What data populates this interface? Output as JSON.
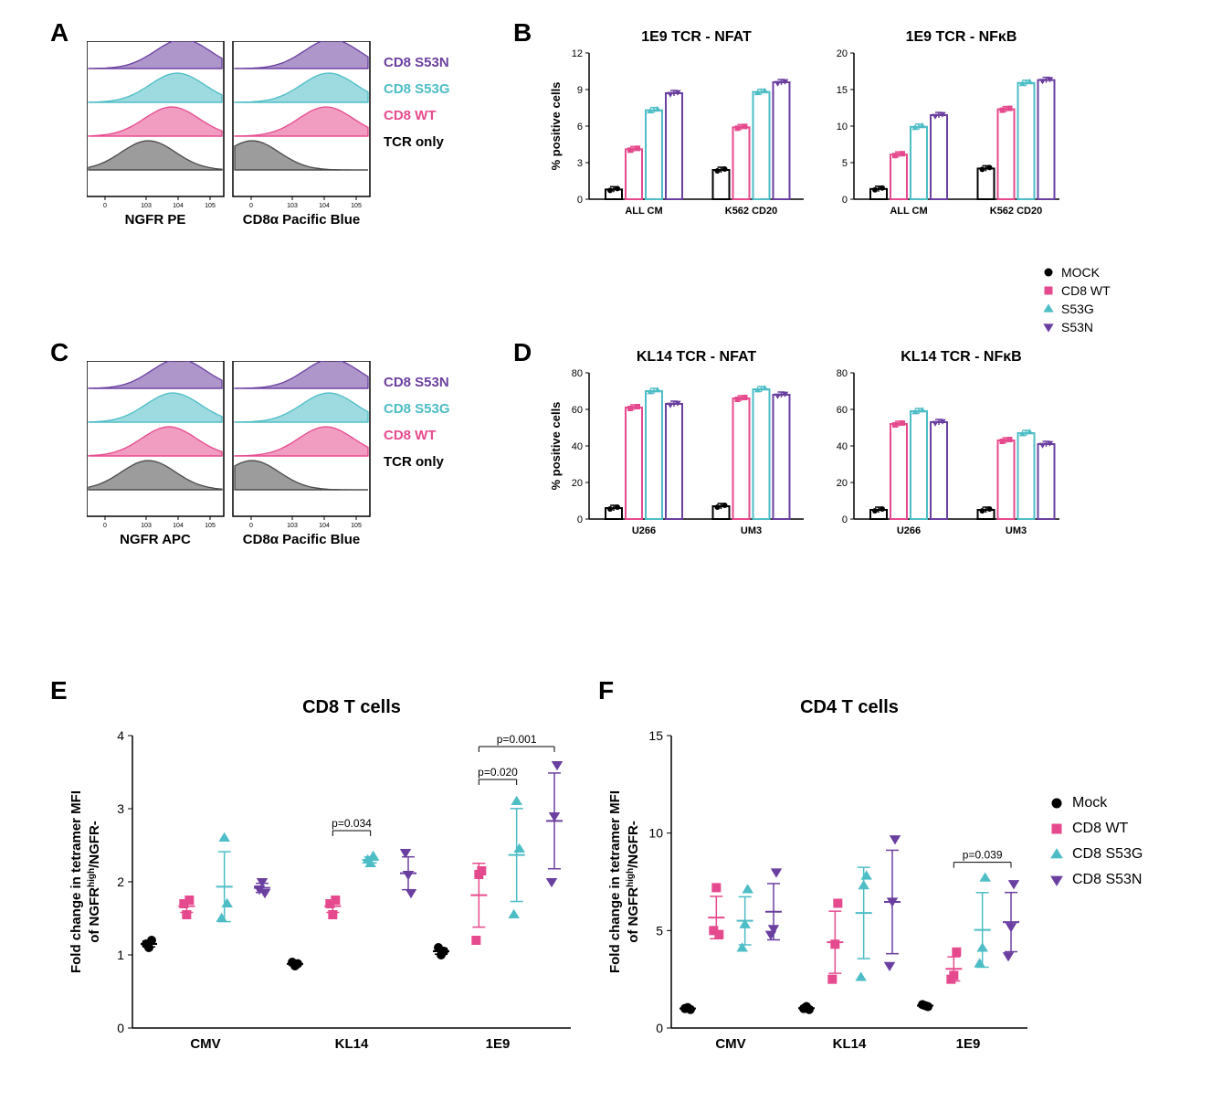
{
  "panels": {
    "A": "A",
    "B": "B",
    "C": "C",
    "D": "D",
    "E": "E",
    "F": "F"
  },
  "colors": {
    "s53n": "#6b3fa0",
    "s53g": "#4dbdc6",
    "wt": "#e64a8e",
    "tcr_only": "#707070",
    "mock": "#000000",
    "axis": "#000000",
    "bg": "#ffffff"
  },
  "histogram_legend": {
    "items": [
      "CD8 S53N",
      "CD8 S53G",
      "CD8 WT",
      "TCR only"
    ],
    "colors": [
      "#6b3fa0",
      "#4dbdc6",
      "#e64a8e",
      "#4a4a4a"
    ]
  },
  "panelA": {
    "left_label": "NGFR PE",
    "right_label": "CD8α Pacific Blue",
    "xticks": [
      "0",
      "10^3",
      "10^4",
      "10^5"
    ]
  },
  "panelC": {
    "left_label": "NGFR APC",
    "right_label": "CD8α Pacific Blue",
    "xticks": [
      "0",
      "10^3",
      "10^4",
      "10^5"
    ]
  },
  "panelB": {
    "ylabel": "% positive cells",
    "nfat": {
      "title": "1E9 TCR - NFAT",
      "ylim": [
        0,
        12
      ],
      "yticks": [
        0,
        3,
        6,
        9,
        12
      ],
      "groups": [
        "ALL CM",
        "K562 CD20"
      ],
      "data": {
        "ALL CM": {
          "MOCK": 0.8,
          "CD8 WT": 4.1,
          "S53G": 7.3,
          "S53N": 8.7
        },
        "K562 CD20": {
          "MOCK": 2.4,
          "CD8 WT": 5.9,
          "S53G": 8.8,
          "S53N": 9.6
        }
      }
    },
    "nfkb": {
      "title": "1E9 TCR - NFκB",
      "ylim": [
        0,
        20
      ],
      "yticks": [
        0,
        5,
        10,
        15,
        20
      ],
      "groups": [
        "ALL CM",
        "K562 CD20"
      ],
      "data": {
        "ALL CM": {
          "MOCK": 1.4,
          "CD8 WT": 6.1,
          "S53G": 9.9,
          "S53N": 11.5
        },
        "K562 CD20": {
          "MOCK": 4.2,
          "CD8 WT": 12.3,
          "S53G": 15.9,
          "S53N": 16.3
        }
      }
    }
  },
  "panelD": {
    "ylabel": "% positive cells",
    "nfat": {
      "title": "KL14 TCR - NFAT",
      "ylim": [
        0,
        80
      ],
      "yticks": [
        0,
        20,
        40,
        60,
        80
      ],
      "groups": [
        "U266",
        "UM3"
      ],
      "data": {
        "U266": {
          "MOCK": 6,
          "CD8 WT": 61,
          "S53G": 70,
          "S53N": 63
        },
        "UM3": {
          "MOCK": 7,
          "CD8 WT": 66,
          "S53G": 71,
          "S53N": 68
        }
      }
    },
    "nfkb": {
      "title": "KL14 TCR - NFκB",
      "ylim": [
        0,
        80
      ],
      "yticks": [
        0,
        20,
        40,
        60,
        80
      ],
      "groups": [
        "U266",
        "UM3"
      ],
      "data": {
        "U266": {
          "MOCK": 5,
          "CD8 WT": 52,
          "S53G": 59,
          "S53N": 53
        },
        "UM3": {
          "MOCK": 5,
          "CD8 WT": 43,
          "S53G": 47,
          "S53N": 41
        }
      }
    }
  },
  "bar_legend": {
    "items": [
      "MOCK",
      "CD8 WT",
      "S53G",
      "S53N"
    ],
    "markers": [
      "circle",
      "square",
      "triangle-up",
      "triangle-down"
    ],
    "colors": [
      "#000000",
      "#e64a8e",
      "#4dbdc6",
      "#6b3fa0"
    ]
  },
  "scatter_legend": {
    "items": [
      "Mock",
      "CD8 WT",
      "CD8 S53G",
      "CD8 S53N"
    ],
    "markers": [
      "circle",
      "square",
      "triangle-up",
      "triangle-down"
    ],
    "colors": [
      "#000000",
      "#e64a8e",
      "#4dbdc6",
      "#6b3fa0"
    ]
  },
  "panelE": {
    "title": "CD8 T cells",
    "ylabel_l1": "Fold change in tetramer MFI",
    "ylabel_l2_html": "of NGFR<sup>high</sup>/NGFR-",
    "ylim": [
      0,
      4
    ],
    "yticks": [
      0,
      1,
      2,
      3,
      4
    ],
    "groups": [
      "CMV",
      "KL14",
      "1E9"
    ],
    "data": {
      "CMV": {
        "Mock": [
          1.15,
          1.1,
          1.2
        ],
        "CD8 WT": [
          1.7,
          1.55,
          1.75
        ],
        "CD8 S53G": [
          1.5,
          2.6,
          1.7
        ],
        "CD8 S53N": [
          1.9,
          2.0,
          1.85
        ]
      },
      "KL14": {
        "Mock": [
          0.9,
          0.85,
          0.88
        ],
        "CD8 WT": [
          1.7,
          1.55,
          1.75
        ],
        "CD8 S53G": [
          2.3,
          2.25,
          2.35
        ],
        "CD8 S53N": [
          2.4,
          2.1,
          1.85
        ]
      },
      "1E9": {
        "Mock": [
          1.1,
          1.0,
          1.05
        ],
        "CD8 WT": [
          1.2,
          2.1,
          2.15
        ],
        "CD8 S53G": [
          1.55,
          3.1,
          2.45
        ],
        "CD8 S53N": [
          2.0,
          2.9,
          3.6
        ]
      }
    },
    "pvalues": [
      {
        "group": "KL14",
        "from": "CD8 WT",
        "to": "CD8 S53G",
        "text": "p=0.034",
        "y": 2.7
      },
      {
        "group": "1E9",
        "from": "CD8 WT",
        "to": "CD8 S53G",
        "text": "p=0.020",
        "y": 3.4
      },
      {
        "group": "1E9",
        "from": "CD8 WT",
        "to": "CD8 S53N",
        "text": "p=0.001",
        "y": 3.85
      }
    ]
  },
  "panelF": {
    "title": "CD4 T cells",
    "ylabel_l1": "Fold change in tetramer MFI",
    "ylabel_l2_html": "of NGFR<sup>high</sup>/NGFR-",
    "ylim": [
      0,
      15
    ],
    "yticks": [
      0,
      5,
      10,
      15
    ],
    "groups": [
      "CMV",
      "KL14",
      "1E9"
    ],
    "data": {
      "CMV": {
        "Mock": [
          1.0,
          1.05,
          0.95
        ],
        "CD8 WT": [
          5.0,
          7.2,
          4.8
        ],
        "CD8 S53G": [
          4.1,
          5.3,
          7.1
        ],
        "CD8 S53N": [
          4.8,
          5.1,
          8.0
        ]
      },
      "KL14": {
        "Mock": [
          1.0,
          1.1,
          0.95
        ],
        "CD8 WT": [
          2.5,
          4.3,
          6.4
        ],
        "CD8 S53G": [
          2.6,
          7.3,
          7.8
        ],
        "CD8 S53N": [
          3.2,
          6.5,
          9.7
        ]
      },
      "1E9": {
        "Mock": [
          1.2,
          1.15,
          1.1
        ],
        "CD8 WT": [
          2.5,
          2.7,
          3.9
        ],
        "CD8 S53G": [
          3.3,
          4.1,
          7.7
        ],
        "CD8 S53N": [
          3.7,
          5.2,
          7.4
        ]
      }
    },
    "pvalues": [
      {
        "group": "1E9",
        "from": "CD8 WT",
        "to": "CD8 S53N",
        "text": "p=0.039",
        "y": 8.5
      }
    ]
  }
}
